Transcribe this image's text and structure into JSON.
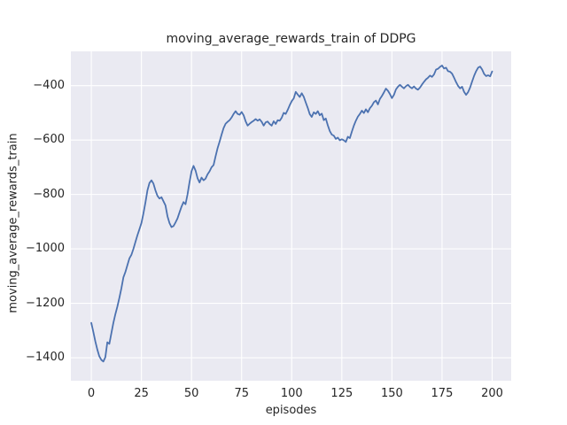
{
  "chart_data": {
    "type": "line",
    "title": "moving_average_rewards_train of DDPG",
    "xlabel": "episodes",
    "ylabel": "moving_average_rewards_train",
    "xlim": [
      -10.2,
      209.5
    ],
    "ylim": [
      -1484.5,
      -274.1
    ],
    "xticks": [
      0,
      25,
      50,
      75,
      100,
      125,
      150,
      175,
      200
    ],
    "yticks": [
      -1400,
      -1200,
      -1000,
      -800,
      -600,
      -400
    ],
    "grid": true,
    "legend_position": "none",
    "plot_background": "#eaeaf2",
    "grid_color": "#ffffff",
    "text_color": "#262626",
    "series": [
      {
        "name": "moving_average_rewards_train",
        "color": "#4c72b0",
        "line_width": 1.8,
        "x_start": 0,
        "x_step": 1,
        "values": [
          -1272,
          -1305,
          -1340,
          -1370,
          -1395,
          -1408,
          -1414,
          -1398,
          -1343,
          -1349,
          -1310,
          -1272,
          -1240,
          -1212,
          -1180,
          -1145,
          -1105,
          -1085,
          -1060,
          -1035,
          -1022,
          -1000,
          -975,
          -950,
          -928,
          -905,
          -870,
          -830,
          -785,
          -758,
          -748,
          -760,
          -785,
          -805,
          -815,
          -810,
          -825,
          -840,
          -880,
          -905,
          -920,
          -916,
          -903,
          -888,
          -866,
          -845,
          -828,
          -836,
          -800,
          -755,
          -715,
          -695,
          -712,
          -740,
          -756,
          -738,
          -748,
          -742,
          -726,
          -715,
          -700,
          -692,
          -660,
          -630,
          -606,
          -580,
          -556,
          -540,
          -533,
          -527,
          -517,
          -504,
          -494,
          -504,
          -507,
          -497,
          -509,
          -531,
          -547,
          -540,
          -534,
          -529,
          -523,
          -529,
          -524,
          -533,
          -547,
          -535,
          -532,
          -541,
          -547,
          -531,
          -541,
          -527,
          -529,
          -518,
          -500,
          -504,
          -489,
          -472,
          -457,
          -447,
          -423,
          -433,
          -442,
          -428,
          -441,
          -462,
          -482,
          -505,
          -515,
          -498,
          -504,
          -494,
          -509,
          -503,
          -527,
          -521,
          -546,
          -567,
          -580,
          -584,
          -596,
          -591,
          -601,
          -597,
          -601,
          -607,
          -588,
          -593,
          -569,
          -547,
          -529,
          -514,
          -504,
          -492,
          -501,
          -487,
          -498,
          -483,
          -474,
          -461,
          -455,
          -469,
          -449,
          -438,
          -425,
          -411,
          -419,
          -431,
          -446,
          -434,
          -414,
          -404,
          -397,
          -404,
          -410,
          -402,
          -397,
          -405,
          -410,
          -403,
          -411,
          -415,
          -407,
          -396,
          -386,
          -377,
          -371,
          -363,
          -368,
          -359,
          -341,
          -338,
          -331,
          -326,
          -337,
          -334,
          -347,
          -349,
          -356,
          -371,
          -387,
          -401,
          -410,
          -404,
          -423,
          -434,
          -424,
          -407,
          -385,
          -364,
          -347,
          -334,
          -330,
          -341,
          -357,
          -365,
          -362,
          -366,
          -348
        ]
      }
    ]
  }
}
